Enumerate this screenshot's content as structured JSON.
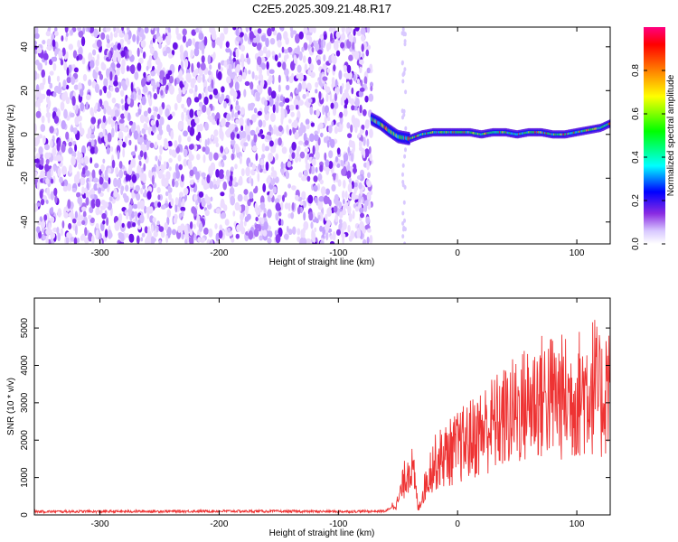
{
  "title": "C2E5.2025.309.21.48.R17",
  "chart_data": [
    {
      "type": "heatmap",
      "xlabel": "Height of straight line (km)",
      "ylabel": "Frequency (Hz)",
      "xlim": [
        -355,
        128
      ],
      "ylim": [
        -50,
        49
      ],
      "xticks": [
        -300,
        -200,
        -100,
        0,
        100
      ],
      "yticks": [
        -40,
        -20,
        0,
        20,
        40
      ],
      "noise_region_x": [
        -355,
        -72
      ],
      "signal_track": {
        "x": [
          -72,
          -65,
          -58,
          -50,
          -40,
          -30,
          -20,
          -10,
          0,
          10,
          20,
          30,
          40,
          50,
          60,
          70,
          80,
          90,
          100,
          110,
          120,
          128
        ],
        "freq_hz": [
          7,
          5,
          2,
          -1,
          -2,
          0,
          1,
          1,
          1,
          1,
          0,
          1,
          1,
          0,
          1,
          1,
          0,
          0,
          1,
          2,
          3,
          5
        ]
      },
      "colorbar": {
        "label": "Normalized spectral amplitude",
        "range": [
          0.0,
          1.0
        ],
        "ticks": [
          "0.0",
          "0.2",
          "0.4",
          "0.6",
          "0.8"
        ],
        "colors": [
          "#ffffff",
          "#d8c8ff",
          "#8a2be2",
          "#0000ff",
          "#00ffff",
          "#00ff00",
          "#ffff00",
          "#ff8000",
          "#ff0000",
          "#ff0080"
        ]
      }
    },
    {
      "type": "line",
      "xlabel": "Height of straight line (km)",
      "ylabel": "SNR (10 * v/v)",
      "xlim": [
        -355,
        128
      ],
      "ylim": [
        0,
        5800
      ],
      "xticks": [
        -300,
        -200,
        -100,
        0,
        100
      ],
      "yticks": [
        0,
        1000,
        2000,
        3000,
        4000,
        5000
      ],
      "color": "#ee3333",
      "series": [
        {
          "name": "SNR",
          "x": [
            -355,
            -300,
            -250,
            -200,
            -150,
            -100,
            -60,
            -50,
            -45,
            -40,
            -36,
            -33,
            -28,
            -22,
            -15,
            -5,
            5,
            15,
            25,
            35,
            45,
            55,
            65,
            75,
            85,
            95,
            105,
            115,
            120,
            128
          ],
          "y": [
            90,
            90,
            95,
            100,
            95,
            90,
            100,
            350,
            900,
            1400,
            900,
            150,
            700,
            1300,
            1500,
            1700,
            1900,
            2100,
            2350,
            2500,
            2700,
            2900,
            3100,
            3200,
            3150,
            3100,
            3300,
            3500,
            3000,
            3800
          ]
        }
      ]
    }
  ]
}
